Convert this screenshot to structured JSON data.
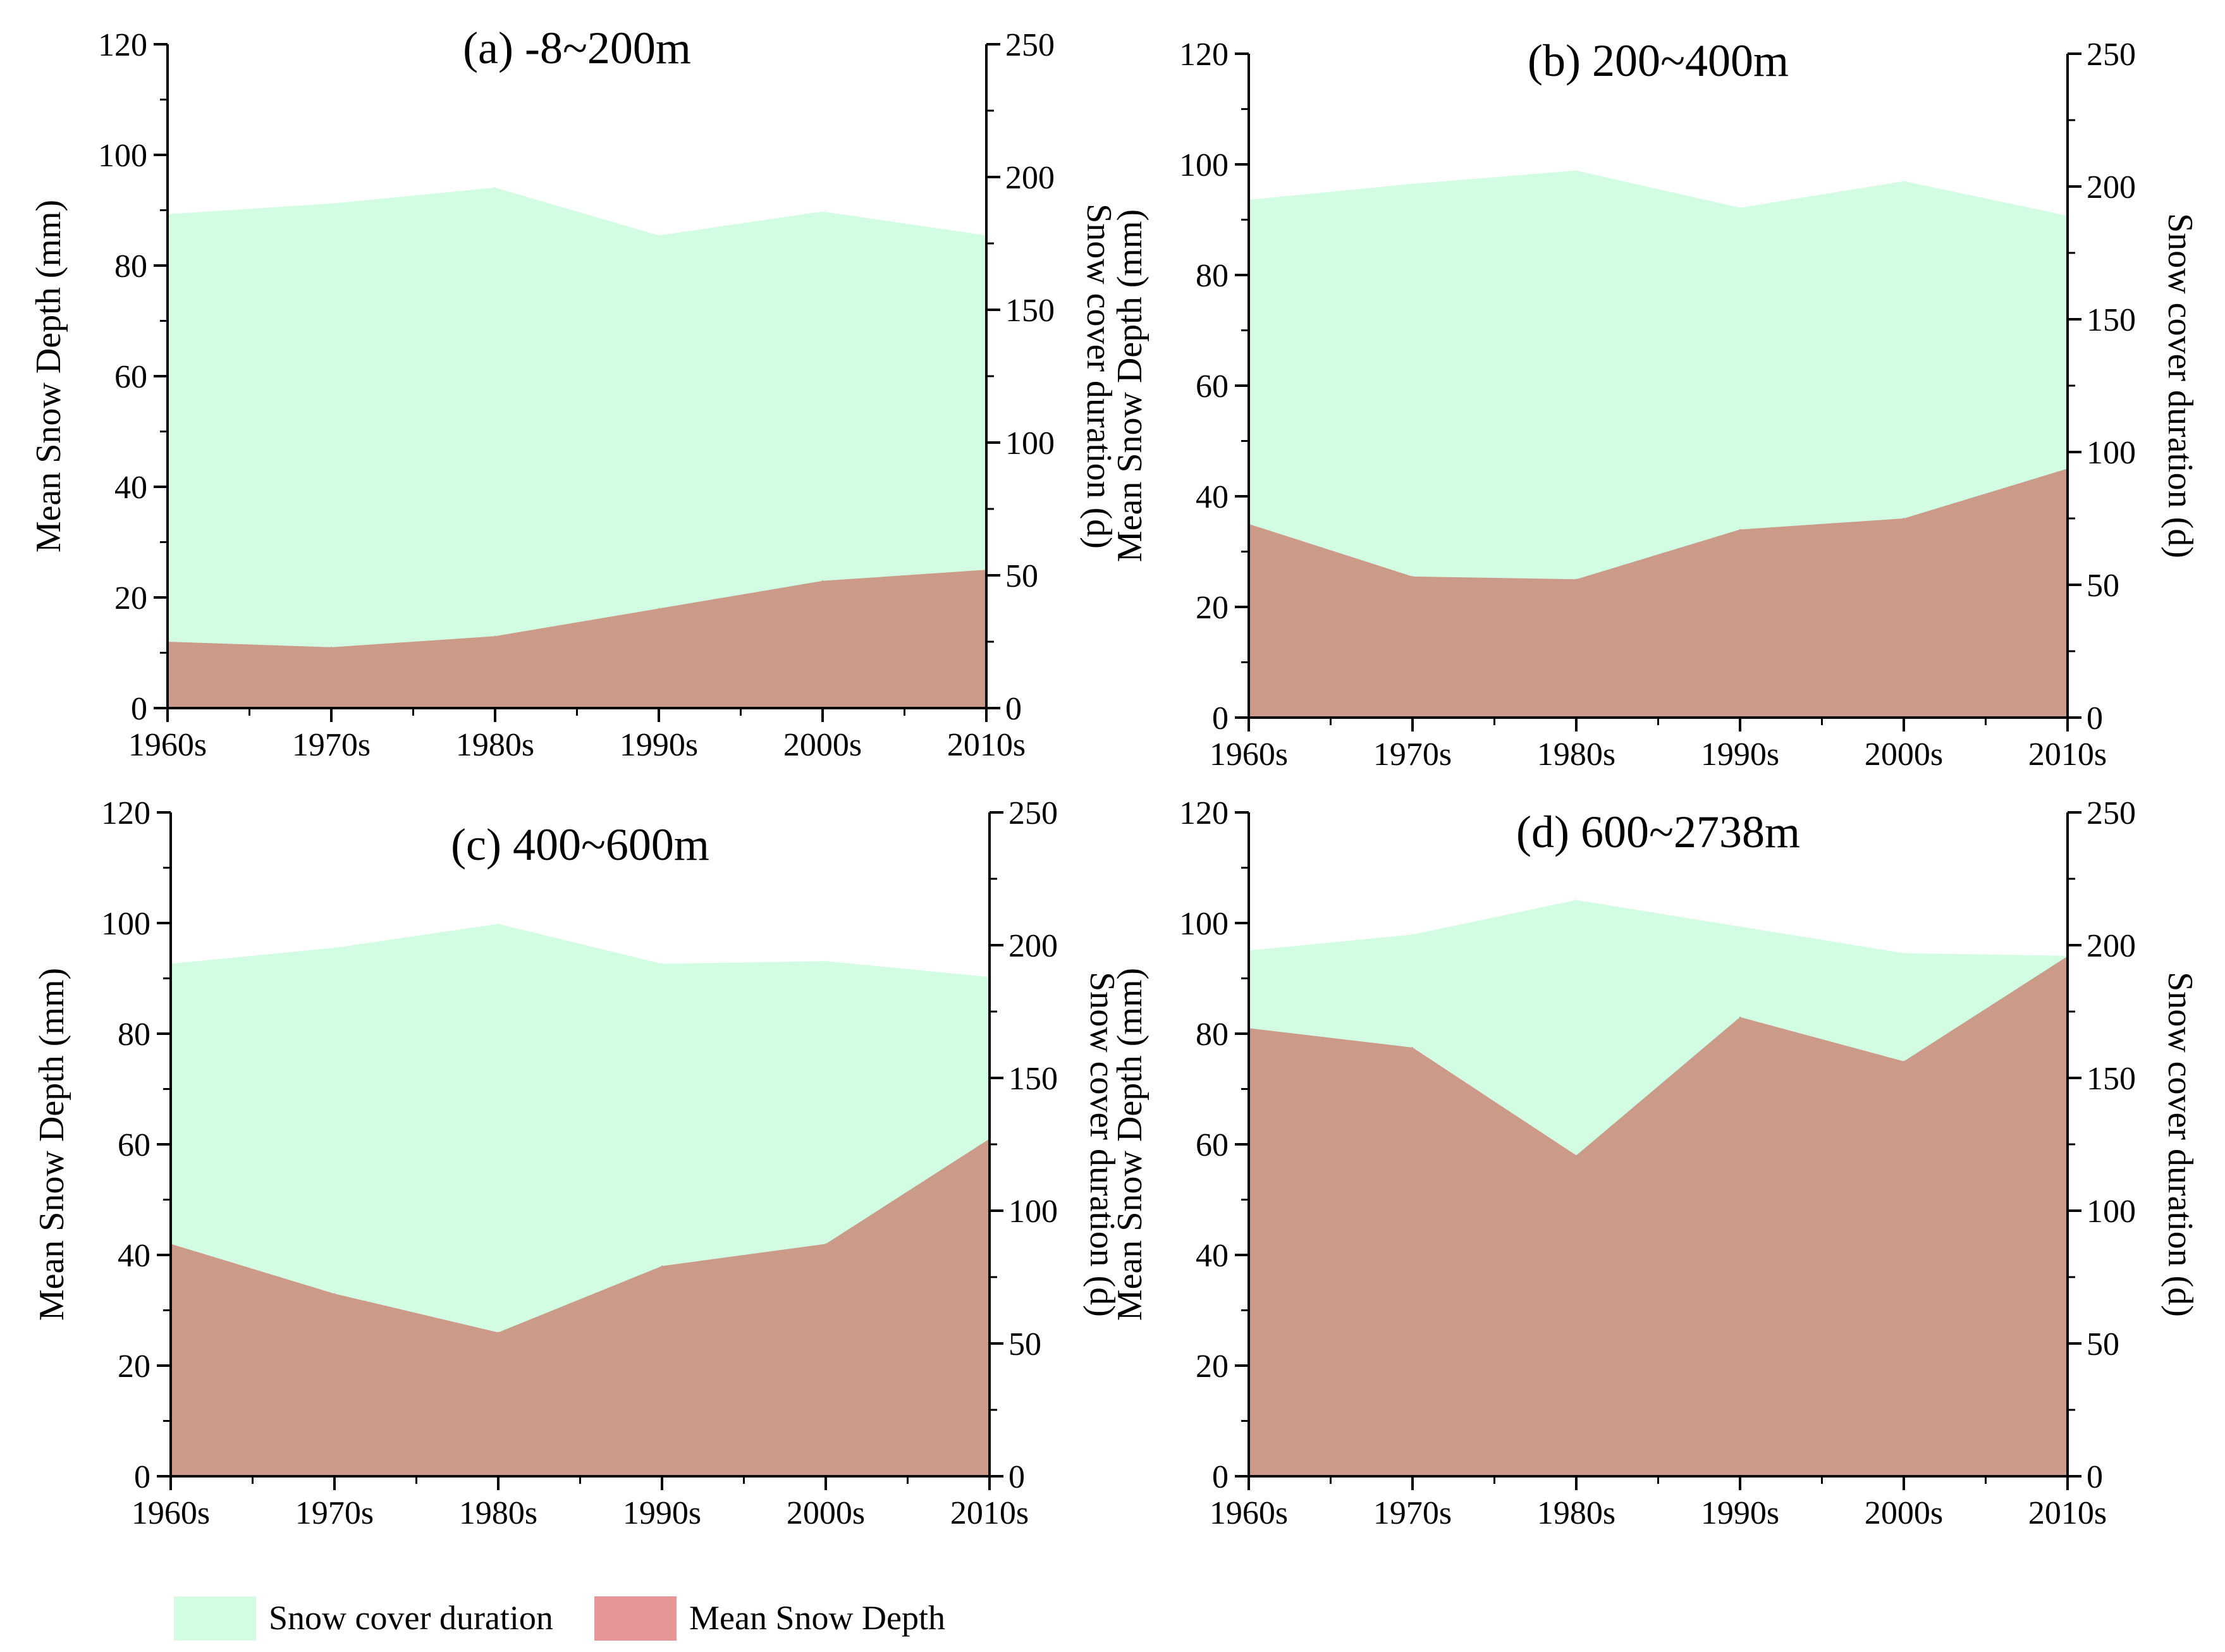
{
  "colors": {
    "snow_cover_duration": "#d2fde2",
    "mean_snow_depth": "#cc9a88",
    "legend_mean_snow_depth": "#e69696"
  },
  "legend": {
    "items": [
      {
        "label": "Snow cover duration",
        "color": "#d2fde2"
      },
      {
        "label": "Mean Snow Depth",
        "color": "#e69696"
      }
    ]
  },
  "chart_data": [
    {
      "type": "area",
      "title": "(a) -8~200m",
      "categories": [
        "1960s",
        "1970s",
        "1980s",
        "1990s",
        "2000s",
        "2010s"
      ],
      "xlabel": "",
      "ylabel": "Mean Snow Depth (mm)",
      "y2label": "Snow cover duration (d)",
      "ylim": [
        0,
        120
      ],
      "y2lim": [
        0,
        250
      ],
      "yticks": [
        "0",
        "20",
        "40",
        "60",
        "80",
        "100",
        "120"
      ],
      "y2ticks": [
        "0",
        "50",
        "100",
        "150",
        "200",
        "250"
      ],
      "series": [
        {
          "name": "Snow cover duration",
          "axis": "right",
          "values": [
            186,
            190,
            196,
            178,
            187,
            178
          ]
        },
        {
          "name": "Mean Snow Depth",
          "axis": "left",
          "values": [
            12,
            11,
            13,
            18,
            23,
            25
          ]
        }
      ]
    },
    {
      "type": "area",
      "title": "(b) 200~400m",
      "categories": [
        "1960s",
        "1970s",
        "1980s",
        "1990s",
        "2000s",
        "2010s"
      ],
      "xlabel": "",
      "ylabel": "Mean Snow Depth (mm)",
      "y2label": "Snow cover duration (d)",
      "ylim": [
        0,
        120
      ],
      "y2lim": [
        0,
        250
      ],
      "yticks": [
        "0",
        "20",
        "40",
        "60",
        "80",
        "100",
        "120"
      ],
      "y2ticks": [
        "0",
        "50",
        "100",
        "150",
        "200",
        "250"
      ],
      "series": [
        {
          "name": "Snow cover duration",
          "axis": "right",
          "values": [
            195,
            201,
            206,
            192,
            202,
            189
          ]
        },
        {
          "name": "Mean Snow Depth",
          "axis": "left",
          "values": [
            35,
            25.5,
            25,
            34,
            36,
            45
          ]
        }
      ]
    },
    {
      "type": "area",
      "title": "(c) 400~600m",
      "categories": [
        "1960s",
        "1970s",
        "1980s",
        "1990s",
        "2000s",
        "2010s"
      ],
      "xlabel": "",
      "ylabel": "Mean Snow Depth (mm)",
      "y2label": "Snow cover duration (d)",
      "ylim": [
        0,
        120
      ],
      "y2lim": [
        0,
        250
      ],
      "yticks": [
        "0",
        "20",
        "40",
        "60",
        "80",
        "100",
        "120"
      ],
      "y2ticks": [
        "0",
        "50",
        "100",
        "150",
        "200",
        "250"
      ],
      "series": [
        {
          "name": "Snow cover duration",
          "axis": "right",
          "values": [
            193,
            199,
            208,
            193,
            194,
            188
          ]
        },
        {
          "name": "Mean Snow Depth",
          "axis": "left",
          "values": [
            42,
            33,
            26,
            38,
            42,
            61
          ]
        }
      ]
    },
    {
      "type": "area",
      "title": "(d) 600~2738m",
      "categories": [
        "1960s",
        "1970s",
        "1980s",
        "1990s",
        "2000s",
        "2010s"
      ],
      "xlabel": "",
      "ylabel": "Mean Snow Depth (mm)",
      "y2label": "Snow cover duration (d)",
      "ylim": [
        0,
        120
      ],
      "y2lim": [
        0,
        250
      ],
      "yticks": [
        "0",
        "20",
        "40",
        "60",
        "80",
        "100",
        "120"
      ],
      "y2ticks": [
        "0",
        "50",
        "100",
        "150",
        "200",
        "250"
      ],
      "series": [
        {
          "name": "Snow cover duration",
          "axis": "right",
          "values": [
            198,
            204,
            217,
            207,
            197,
            196
          ]
        },
        {
          "name": "Mean Snow Depth",
          "axis": "left",
          "values": [
            81,
            77.5,
            58,
            83,
            75,
            94
          ]
        }
      ]
    }
  ]
}
